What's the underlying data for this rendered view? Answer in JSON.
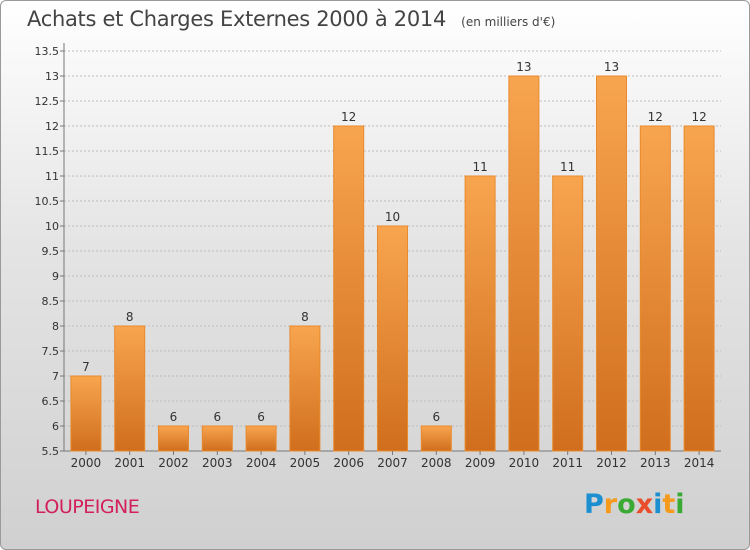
{
  "header": {
    "title": "Achats et Charges Externes 2000 à 2014",
    "subtitle": "(en milliers d'€)"
  },
  "footer": {
    "commune": "LOUPEIGNE",
    "brand_letters": [
      {
        "char": "P",
        "color": "#1b8fd0"
      },
      {
        "char": "r",
        "color": "#f59a1b"
      },
      {
        "char": "o",
        "color": "#3aaa35"
      },
      {
        "char": "x",
        "color": "#e94d2b"
      },
      {
        "char": "i",
        "color": "#1b8fd0"
      },
      {
        "char": "t",
        "color": "#f59a1b"
      },
      {
        "char": "i",
        "color": "#3aaa35"
      }
    ]
  },
  "colors": {
    "bar_top": "#f8a54f",
    "bar_bottom": "#d06e1d",
    "grid": "#bdbdbd",
    "axis_text": "#333333"
  },
  "chart_data": {
    "type": "bar",
    "categories": [
      "2000",
      "2001",
      "2002",
      "2003",
      "2004",
      "2005",
      "2006",
      "2007",
      "2008",
      "2009",
      "2010",
      "2011",
      "2012",
      "2013",
      "2014"
    ],
    "values": [
      7,
      8,
      6,
      6,
      6,
      8,
      12,
      10,
      6,
      11,
      13,
      11,
      13,
      12,
      12
    ],
    "data_labels": [
      "7",
      "8",
      "6",
      "6",
      "6",
      "8",
      "12",
      "10",
      "6",
      "11",
      "13",
      "11",
      "13",
      "12",
      "12"
    ],
    "title": "Achats et Charges Externes 2000 à 2014",
    "subtitle": "(en milliers d'€)",
    "xlabel": "",
    "ylabel": "",
    "ylim": [
      5.5,
      13.5
    ],
    "yticks": [
      "5.5",
      "6",
      "6.5",
      "7",
      "7.5",
      "8",
      "8.5",
      "9",
      "9.5",
      "10",
      "10.5",
      "11",
      "11.5",
      "12",
      "12.5",
      "13",
      "13.5"
    ],
    "grid": true,
    "legend": "none"
  }
}
